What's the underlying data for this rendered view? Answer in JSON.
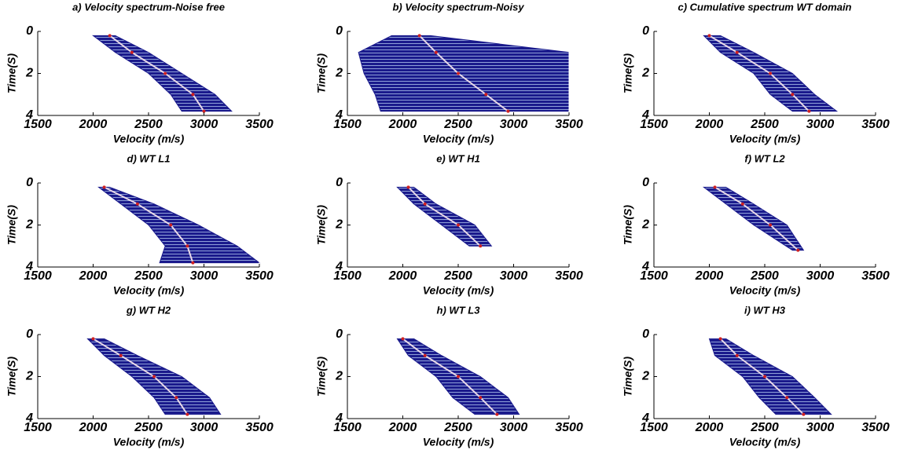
{
  "chart_data": [
    {
      "type": "spectrum",
      "title": "a) Velocity spectrum-Noise free",
      "xlabel": "Velocity (m/s)",
      "ylabel": "Time(S)",
      "xlim": [
        1500,
        3500
      ],
      "xticks": [
        1500,
        2000,
        2500,
        3000,
        3500
      ],
      "ylim": [
        0,
        4
      ],
      "yticks": [
        0,
        2,
        4
      ],
      "time": [
        0.2,
        1,
        2,
        3,
        3.8
      ],
      "vel_low": [
        2000,
        2200,
        2500,
        2700,
        2800
      ],
      "vel_high": [
        2200,
        2500,
        2800,
        3100,
        3250
      ],
      "vel_peak": [
        2150,
        2350,
        2650,
        2900,
        3000
      ]
    },
    {
      "type": "spectrum",
      "title": "b) Velocity spectrum-Noisy",
      "xlabel": "Velocity (m/s)",
      "ylabel": "Time(S)",
      "xlim": [
        1500,
        3500
      ],
      "xticks": [
        1500,
        2000,
        2500,
        3000,
        3500
      ],
      "ylim": [
        0,
        4
      ],
      "yticks": [
        0,
        2,
        4
      ],
      "time": [
        0.2,
        1,
        2,
        3,
        3.8
      ],
      "vel_low": [
        1900,
        1600,
        1650,
        1750,
        1800
      ],
      "vel_high": [
        2250,
        3500,
        3500,
        3500,
        3500
      ],
      "vel_peak": [
        2150,
        2300,
        2500,
        2750,
        2950
      ]
    },
    {
      "type": "spectrum",
      "title": "c) Cumulative spectrum WT domain",
      "xlabel": "Velocity (m/s)",
      "ylabel": "Time(S)",
      "xlim": [
        1500,
        3500
      ],
      "xticks": [
        1500,
        2000,
        2500,
        3000,
        3500
      ],
      "ylim": [
        0,
        4
      ],
      "yticks": [
        0,
        2,
        4
      ],
      "time": [
        0.2,
        1,
        2,
        3,
        3.8
      ],
      "vel_low": [
        1950,
        2100,
        2400,
        2550,
        2750
      ],
      "vel_high": [
        2100,
        2400,
        2750,
        2950,
        3150
      ],
      "vel_peak": [
        2000,
        2250,
        2550,
        2750,
        2900
      ]
    },
    {
      "type": "spectrum",
      "title": "d) WT L1",
      "xlabel": "Velocity (m/s)",
      "ylabel": "Time(S)",
      "xlim": [
        1500,
        3500
      ],
      "xticks": [
        1500,
        2000,
        2500,
        3000,
        3500
      ],
      "ylim": [
        0,
        4
      ],
      "yticks": [
        0,
        2,
        4
      ],
      "time": [
        0.2,
        1,
        2,
        3,
        3.8
      ],
      "vel_low": [
        2050,
        2250,
        2500,
        2650,
        2600
      ],
      "vel_high": [
        2150,
        2550,
        2950,
        3300,
        3500
      ],
      "vel_peak": [
        2100,
        2400,
        2700,
        2850,
        2900
      ]
    },
    {
      "type": "spectrum",
      "title": "e) WT H1",
      "xlabel": "Velocity (m/s)",
      "ylabel": "Time(S)",
      "xlim": [
        1500,
        3500
      ],
      "xticks": [
        1500,
        2000,
        2500,
        3000,
        3500
      ],
      "ylim": [
        0,
        4
      ],
      "yticks": [
        0,
        2,
        4
      ],
      "time": [
        0.2,
        1,
        2,
        3
      ],
      "vel_low": [
        1950,
        2100,
        2350,
        2600
      ],
      "vel_high": [
        2100,
        2300,
        2650,
        2800
      ],
      "vel_peak": [
        2050,
        2200,
        2500,
        2700
      ]
    },
    {
      "type": "spectrum",
      "title": "f) WT L2",
      "xlabel": "Velocity (m/s)",
      "ylabel": "Time(S)",
      "xlim": [
        1500,
        3500
      ],
      "xticks": [
        1500,
        2000,
        2500,
        3000,
        3500
      ],
      "ylim": [
        0,
        4
      ],
      "yticks": [
        0,
        2,
        4
      ],
      "time": [
        0.2,
        1,
        2,
        3.2
      ],
      "vel_low": [
        1950,
        2150,
        2400,
        2750
      ],
      "vel_high": [
        2150,
        2400,
        2700,
        2850
      ],
      "vel_peak": [
        2050,
        2300,
        2550,
        2800
      ]
    },
    {
      "type": "spectrum",
      "title": "g) WT H2",
      "xlabel": "Velocity (m/s)",
      "ylabel": "Time(S)",
      "xlim": [
        1500,
        3500
      ],
      "xticks": [
        1500,
        2000,
        2500,
        3000,
        3500
      ],
      "ylim": [
        0,
        4
      ],
      "yticks": [
        0,
        2,
        4
      ],
      "time": [
        0.2,
        1,
        2,
        3,
        3.8
      ],
      "vel_low": [
        1950,
        2100,
        2350,
        2550,
        2650
      ],
      "vel_high": [
        2100,
        2400,
        2800,
        3050,
        3150
      ],
      "vel_peak": [
        2000,
        2250,
        2550,
        2750,
        2850
      ]
    },
    {
      "type": "spectrum",
      "title": "h) WT L3",
      "xlabel": "Velocity (m/s)",
      "ylabel": "Time(S)",
      "xlim": [
        1500,
        3500
      ],
      "xticks": [
        1500,
        2000,
        2500,
        3000,
        3500
      ],
      "ylim": [
        0,
        4
      ],
      "yticks": [
        0,
        2,
        4
      ],
      "time": [
        0.2,
        1,
        2,
        3,
        3.8
      ],
      "vel_low": [
        1950,
        2050,
        2300,
        2450,
        2650
      ],
      "vel_high": [
        2100,
        2350,
        2700,
        2950,
        3050
      ],
      "vel_peak": [
        2000,
        2200,
        2500,
        2700,
        2850
      ]
    },
    {
      "type": "spectrum",
      "title": "i) WT H3",
      "xlabel": "Velocity (m/s)",
      "ylabel": "Time(S)",
      "xlim": [
        1500,
        3500
      ],
      "xticks": [
        1500,
        2000,
        2500,
        3000,
        3500
      ],
      "ylim": [
        0,
        4
      ],
      "yticks": [
        0,
        2,
        4
      ],
      "time": [
        0.2,
        1,
        2,
        3,
        3.8
      ],
      "vel_low": [
        2000,
        2050,
        2300,
        2450,
        2600
      ],
      "vel_high": [
        2150,
        2400,
        2750,
        2950,
        3100
      ],
      "vel_peak": [
        2100,
        2250,
        2500,
        2700,
        2850
      ]
    }
  ]
}
